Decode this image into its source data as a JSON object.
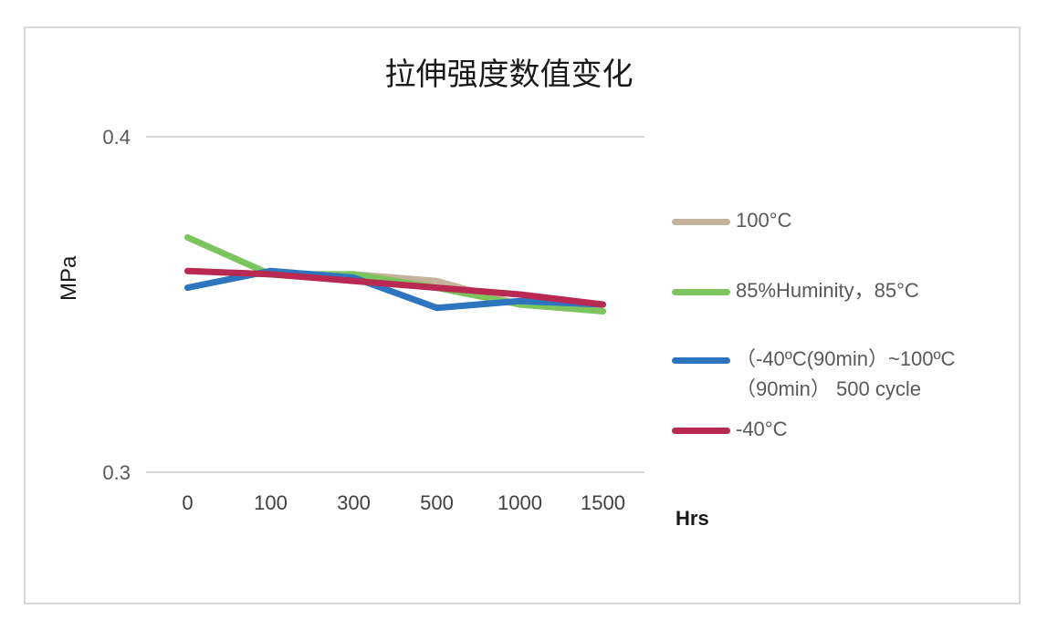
{
  "chart_data": {
    "type": "line",
    "title": "拉伸强度数值变化",
    "xlabel": "Hrs",
    "ylabel": "MPa",
    "categories": [
      "0",
      "100",
      "300",
      "500",
      "1000",
      "1500"
    ],
    "ylim": [
      0.3,
      0.4
    ],
    "yticks": [
      "0.4",
      "0.3"
    ],
    "grid": true,
    "legend_position": "right",
    "series": [
      {
        "name": "100°C",
        "color": "#c4b29b",
        "values": [
          0.36,
          0.359,
          0.359,
          0.357,
          0.35,
          0.348
        ]
      },
      {
        "name": "85%Huminity，85°C",
        "color": "#7cc45e",
        "values": [
          0.37,
          0.359,
          0.359,
          0.355,
          0.35,
          0.348
        ]
      },
      {
        "name": "（-40ºC(90min）~100ºC（90min） 500 cycle",
        "line1": "（-40ºC(90min）~100ºC",
        "line2": "（90min） 500 cycle",
        "color": "#2e75c0",
        "values": [
          0.355,
          0.36,
          0.358,
          0.349,
          0.351,
          0.35
        ]
      },
      {
        "name": "-40°C",
        "color": "#b82a52",
        "values": [
          0.36,
          0.359,
          0.357,
          0.355,
          0.353,
          0.35
        ]
      }
    ]
  }
}
